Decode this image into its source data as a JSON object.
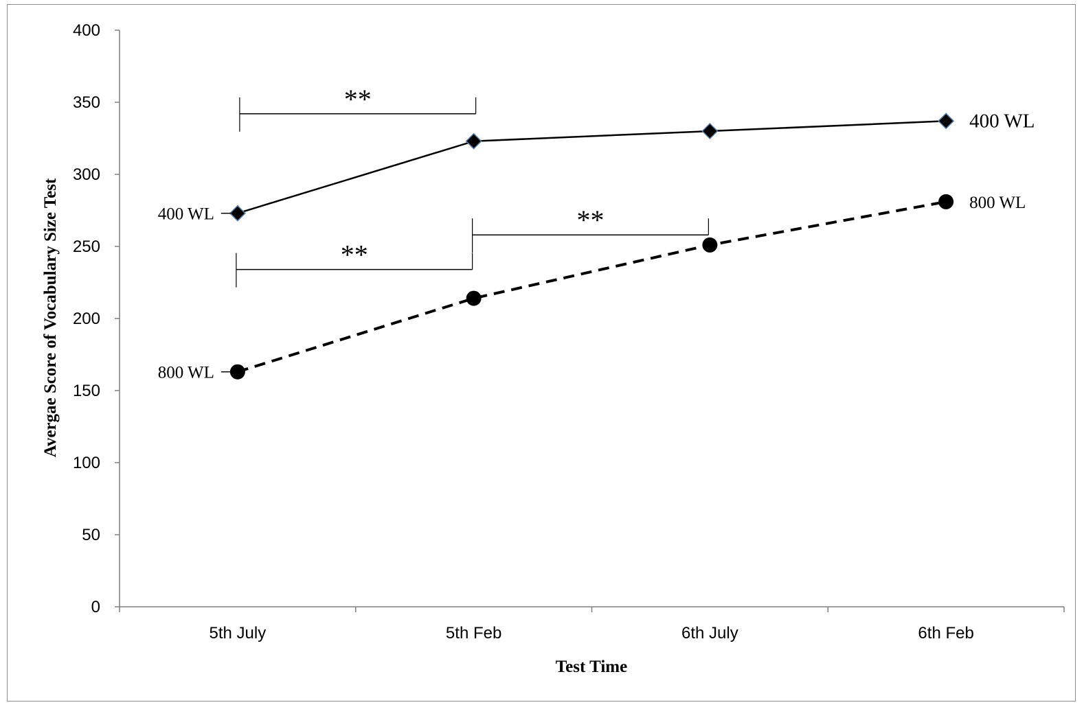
{
  "chart_data": {
    "type": "line",
    "title": "",
    "xlabel": "Test Time",
    "ylabel": "Avergae Score of Vocabulary Size Test",
    "categories": [
      "5th July",
      "5th Feb",
      "6th July",
      "6th Feb"
    ],
    "ylim": [
      0,
      400
    ],
    "yticks": [
      "0",
      "50",
      "100",
      "150",
      "200",
      "250",
      "300",
      "350",
      "400"
    ],
    "grid": false,
    "series": [
      {
        "name": "400 WL",
        "values": [
          273,
          323,
          330,
          337
        ],
        "line_style": "solid",
        "marker": "diamond",
        "color": "#000000"
      },
      {
        "name": "800 WL",
        "values": [
          163,
          214,
          251,
          281
        ],
        "line_style": "dashed",
        "marker": "circle",
        "color": "#000000"
      }
    ],
    "annotations": {
      "start_labels": [
        "400 WL",
        "800 WL"
      ],
      "end_labels": [
        "400 WL",
        "800 WL"
      ],
      "significance": [
        {
          "from": 0,
          "to": 1,
          "y": 342,
          "text": "**"
        },
        {
          "from": 0,
          "to": 1,
          "y": 234,
          "text": "**"
        },
        {
          "from": 1,
          "to": 2,
          "y": 258,
          "text": "**"
        }
      ]
    }
  }
}
